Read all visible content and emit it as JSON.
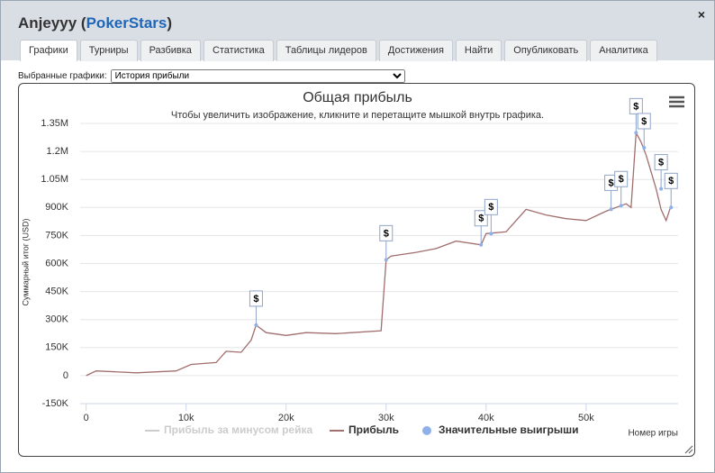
{
  "header": {
    "title_prefix": "Anjeyyy (",
    "site": "PokerStars",
    "title_suffix": ")",
    "close": "×"
  },
  "tabs": [
    "Графики",
    "Турниры",
    "Разбивка",
    "Статистика",
    "Таблицы лидеров",
    "Достижения",
    "Найти",
    "Опубликовать",
    "Аналитика"
  ],
  "active_tab": 0,
  "selector": {
    "label": "Выбранные графики:",
    "value": "История прибыли"
  },
  "chart_data": {
    "type": "line",
    "title": "Общая прибыль",
    "subtitle": "Чтобы увеличить изображение, кликните и перетащите мышкой внутрь графика.",
    "ylabel": "Суммарный итог (USD)",
    "xlabel": "Номер игры",
    "xlim": [
      -600,
      59200
    ],
    "ylim": [
      -150000,
      1350000
    ],
    "xticks": [
      0,
      {
        "value": 10000,
        "label": "10k"
      },
      {
        "value": 20000,
        "label": "20k"
      },
      {
        "value": 30000,
        "label": "30k"
      },
      {
        "value": 40000,
        "label": "40k"
      },
      {
        "value": 50000,
        "label": "50k"
      }
    ],
    "yticks": [
      {
        "value": -150000,
        "label": "-150K"
      },
      0,
      {
        "value": 150000,
        "label": "150K"
      },
      {
        "value": 300000,
        "label": "300K"
      },
      {
        "value": 450000,
        "label": "450K"
      },
      {
        "value": 600000,
        "label": "600K"
      },
      {
        "value": 750000,
        "label": "750K"
      },
      {
        "value": 900000,
        "label": "900K"
      },
      {
        "value": 1050000,
        "label": "1.05M"
      },
      {
        "value": 1200000,
        "label": "1.2M"
      },
      {
        "value": 1350000,
        "label": "1.35M"
      }
    ],
    "grid": true,
    "flag_label": "$",
    "series": [
      {
        "name": "Прибыль за минусом рейка",
        "color": "#cccccc",
        "visible": false
      },
      {
        "name": "Прибыль",
        "color": "#a26e6e",
        "visible": true,
        "x": [
          0,
          1000,
          5000,
          9000,
          10500,
          13000,
          14000,
          15500,
          16500,
          17000,
          18000,
          20000,
          22000,
          25000,
          29500,
          30000,
          30500,
          33000,
          35000,
          37000,
          39500,
          40000,
          42000,
          43000,
          44000,
          46000,
          48000,
          50000,
          52000,
          54000,
          54500,
          55000,
          55500,
          56000,
          57000,
          57500,
          58000,
          58500
        ],
        "values": [
          0,
          25000,
          15000,
          25000,
          60000,
          70000,
          130000,
          125000,
          190000,
          270000,
          230000,
          215000,
          230000,
          225000,
          240000,
          620000,
          640000,
          660000,
          680000,
          720000,
          700000,
          760000,
          770000,
          830000,
          890000,
          860000,
          840000,
          830000,
          880000,
          920000,
          900000,
          1300000,
          1250000,
          1180000,
          1000000,
          890000,
          830000,
          910000
        ]
      },
      {
        "name": "Значительные выигрыши",
        "color": "#8fb0e8",
        "visible": true,
        "marker": "flag",
        "x": [
          17000,
          30000,
          39500,
          40500,
          52500,
          53500,
          55000,
          55800,
          57500,
          58500
        ],
        "values": [
          270000,
          620000,
          700000,
          760000,
          890000,
          910000,
          1300000,
          1220000,
          1000000,
          900000
        ]
      }
    ]
  }
}
